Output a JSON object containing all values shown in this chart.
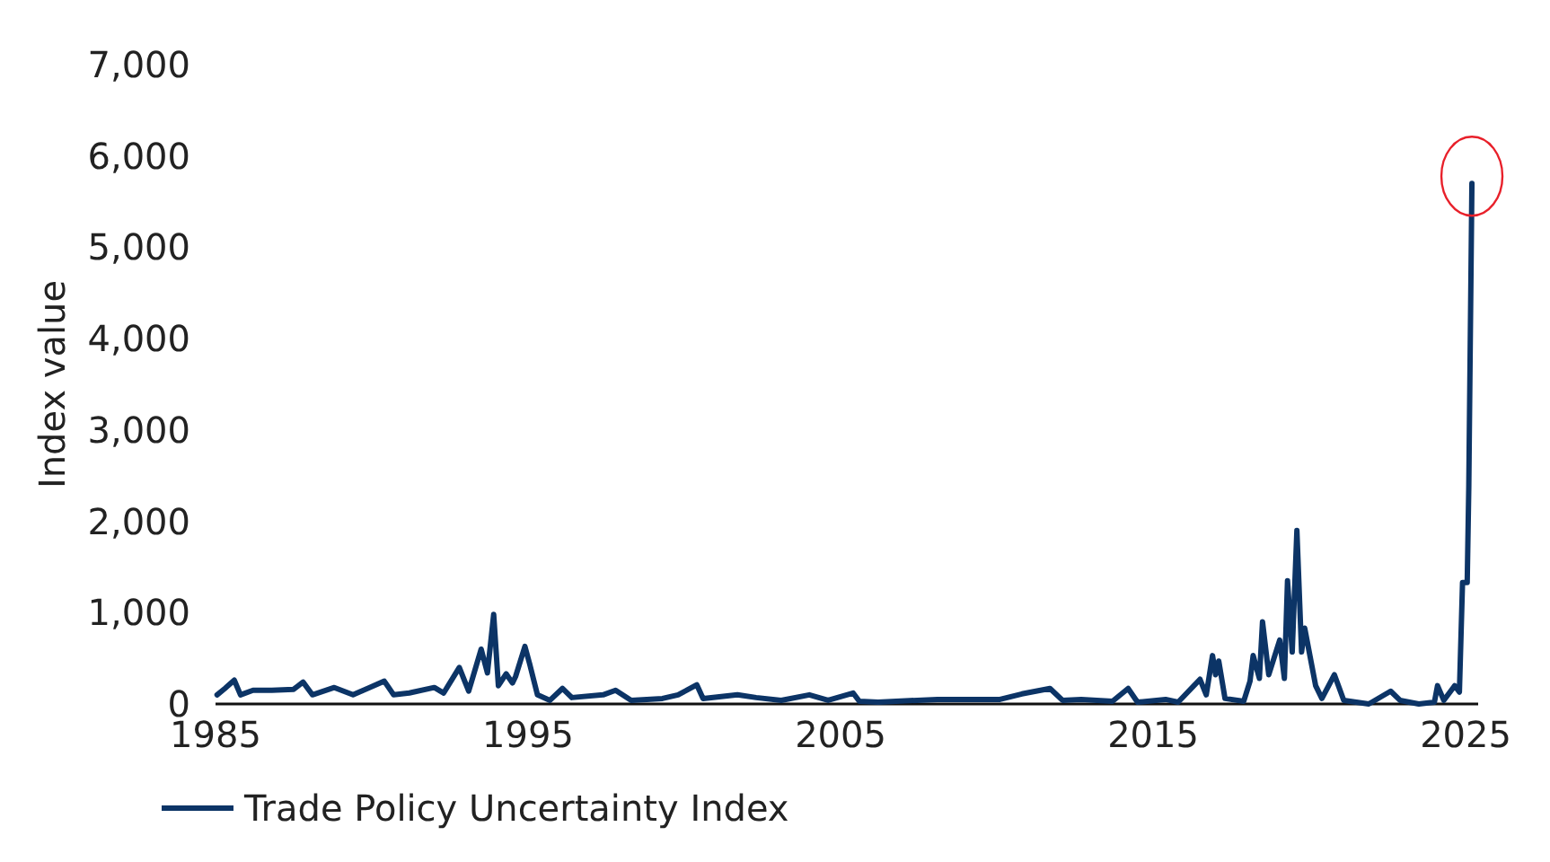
{
  "chart_data": {
    "type": "line",
    "ylabel": "Index value",
    "xlim": [
      1985,
      2025.4
    ],
    "xticks": [
      1985,
      1995,
      2005,
      2015,
      2025
    ],
    "ylim": [
      0,
      7000
    ],
    "yticks": [
      {
        "value": 0,
        "label": "0"
      },
      {
        "value": 1000,
        "label": "1,000"
      },
      {
        "value": 2000,
        "label": "2,000"
      },
      {
        "value": 3000,
        "label": "3,000"
      },
      {
        "value": 4000,
        "label": "4,000"
      },
      {
        "value": 5000,
        "label": "5,000"
      },
      {
        "value": 6000,
        "label": "6,000"
      },
      {
        "value": 7000,
        "label": "7,000"
      }
    ],
    "grid": false,
    "legend": "bottom left",
    "marker": "none",
    "line_style": "solid",
    "x": [
      1985.05,
      1985.3,
      1985.6,
      1985.8,
      1986.2,
      1986.8,
      1987.5,
      1987.8,
      1988.1,
      1988.8,
      1989.4,
      1990.4,
      1990.7,
      1991.2,
      1992,
      1992.3,
      1992.8,
      1993.1,
      1993.5,
      1993.7,
      1993.9,
      1994.05,
      1994.3,
      1994.5,
      1994.6,
      1994.9,
      1995.05,
      1995.3,
      1995.7,
      1996.1,
      1996.4,
      1997.4,
      1997.8,
      1998.3,
      1999.3,
      1999.8,
      2000.4,
      2000.6,
      2001.7,
      2002.3,
      2003.1,
      2004,
      2004.6,
      2005.4,
      2005.6,
      2006.2,
      2008.1,
      2008.9,
      2010.1,
      2010.8,
      2011.7,
      2012.1,
      2012.7,
      2013.7,
      2014.2,
      2014.5,
      2015.4,
      2015.8,
      2016.5,
      2016.7,
      2016.9,
      2017,
      2017.1,
      2017.3,
      2017.9,
      2018.1,
      2018.2,
      2018.4,
      2018.5,
      2018.7,
      2019.05,
      2019.2,
      2019.3,
      2019.45,
      2019.6,
      2019.75,
      2019.85,
      2020.2,
      2020.4,
      2020.8,
      2021.1,
      2021.9,
      2022.6,
      2022.9,
      2023.5,
      2024,
      2024.1,
      2024.3,
      2024.65,
      2024.8,
      2024.9,
      2025.05,
      2025.1,
      2025.2
    ],
    "series": [
      {
        "name": "Trade Policy Uncertainty Index",
        "color": "#0c3466",
        "values": [
          100,
          170,
          260,
          100,
          150,
          150,
          160,
          240,
          100,
          180,
          100,
          250,
          100,
          120,
          180,
          120,
          400,
          140,
          600,
          340,
          980,
          200,
          330,
          230,
          300,
          630,
          440,
          100,
          40,
          170,
          70,
          100,
          150,
          40,
          60,
          100,
          210,
          60,
          100,
          70,
          40,
          100,
          40,
          120,
          30,
          20,
          50,
          50,
          50,
          110,
          170,
          40,
          50,
          30,
          170,
          20,
          50,
          20,
          270,
          100,
          530,
          320,
          470,
          60,
          30,
          250,
          530,
          280,
          900,
          320,
          700,
          280,
          1350,
          570,
          1900,
          570,
          830,
          200,
          60,
          320,
          40,
          0,
          140,
          40,
          0,
          20,
          200,
          40,
          200,
          130,
          1330,
          1330,
          2370,
          5700
        ]
      }
    ]
  }
}
